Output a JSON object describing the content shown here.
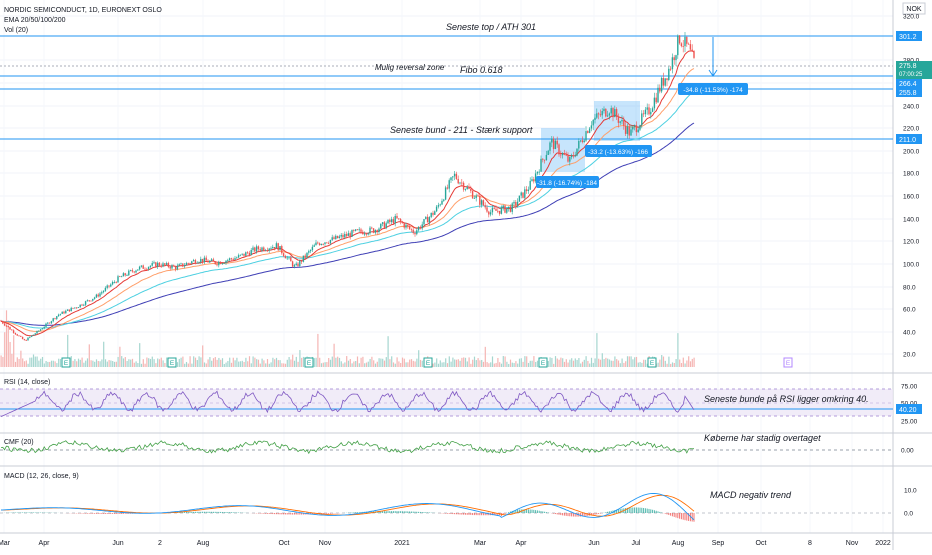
{
  "header": {
    "symbol_line": "NORDIC SEMICONDUCT, 1D, EURONEXT OSLO",
    "ema_line": "EMA 20/50/100/200",
    "vol_line": "Vol (20)",
    "currency": "NOK"
  },
  "colors": {
    "price_up": "#26a69a",
    "price_down": "#ef5350",
    "ema20": "#e53935",
    "ema50": "#ff9f6b",
    "ema100": "#4dd0e1",
    "ema200": "#3f3fb5",
    "hline": "#2196f3",
    "rsi": "#7e57c2",
    "cmf": "#43a047",
    "macd": "#2196f3",
    "signal": "#ff6d00"
  },
  "chart_data": [
    {
      "type": "line",
      "panel": "price",
      "title": "NORDIC SEMICONDUCT, 1D, EURONEXT OSLO",
      "currency": "NOK",
      "ylim": [
        10,
        325
      ],
      "y_ticks": [
        "320.0",
        "280.0",
        "260.0",
        "240.0",
        "220.0",
        "200.0",
        "180.0",
        "160.0",
        "140.0",
        "120.0",
        "100.0",
        "80.0",
        "60.0",
        "40.0",
        "20.0"
      ],
      "x_ticks": [
        "Mar",
        "Apr",
        "Jun",
        "2",
        "Aug",
        "Oct",
        "Nov",
        "2021",
        "Mar",
        "Apr",
        "Jun",
        "Jul",
        "Aug",
        "Sep",
        "Oct",
        "8",
        "Nov",
        "2022"
      ],
      "x_range": [
        "2020-03-01",
        "2022-01-20"
      ],
      "series": [
        {
          "name": "Close",
          "x": [
            "2020-03-01",
            "2020-03-20",
            "2020-04-01",
            "2020-04-15",
            "2020-05-01",
            "2020-05-15",
            "2020-06-01",
            "2020-06-15",
            "2020-07-01",
            "2020-07-15",
            "2020-08-01",
            "2020-08-15",
            "2020-09-01",
            "2020-09-15",
            "2020-10-01",
            "2020-10-15",
            "2020-11-01",
            "2020-11-15",
            "2020-12-01",
            "2020-12-15",
            "2021-01-01",
            "2021-01-15",
            "2021-02-01",
            "2021-02-15",
            "2021-03-01",
            "2021-03-15",
            "2021-04-01",
            "2021-04-15",
            "2021-05-01",
            "2021-05-15",
            "2021-06-01",
            "2021-06-15",
            "2021-07-01",
            "2021-07-15",
            "2021-08-01",
            "2021-08-08",
            "2021-08-15",
            "2021-08-20"
          ],
          "values": [
            50,
            32,
            42,
            55,
            63,
            72,
            88,
            96,
            100,
            97,
            104,
            101,
            106,
            113,
            116,
            97,
            118,
            122,
            128,
            130,
            140,
            128,
            148,
            178,
            162,
            146,
            150,
            170,
            208,
            190,
            226,
            238,
            215,
            235,
            275,
            300,
            290,
            275
          ]
        }
      ],
      "emas": [
        "EMA 20",
        "EMA 50",
        "EMA 100",
        "EMA 200"
      ],
      "price_labels": [
        "301.2",
        "275.8",
        "07:00:25",
        "266.4",
        "255.8",
        "211.0"
      ],
      "annotations": [
        "Seneste top / ATH 301",
        "Mulig reversal zone",
        "Fibo 0.618",
        "Seneste bund - 211 - Stærk support"
      ],
      "measurements": [
        "-34.8 (-11.53%) -174",
        "-33.2 (-13.63%) -166",
        "-31.8 (-16.74%) -184"
      ]
    },
    {
      "type": "line",
      "panel": "RSI",
      "title": "RSI (14, close)",
      "y_ticks": [
        "75.00",
        "50.00",
        "25.00"
      ],
      "last_value": "40.20",
      "annotation": "Seneste bunde på RSI ligger omkring 40."
    },
    {
      "type": "line",
      "panel": "CMF",
      "title": "CMF (20)",
      "y_ticks": [
        "0.00"
      ],
      "annotation": "Køberne har stadig overtaget"
    },
    {
      "type": "line",
      "panel": "MACD",
      "title": "MACD (12, 26, close, 9)",
      "y_ticks": [
        "10.0",
        "0.0"
      ],
      "annotation": "MACD negativ trend"
    }
  ],
  "labels": {
    "ann_top": "Seneste top / ATH 301",
    "ann_reversal": "Mulig reversal zone",
    "ann_fibo": "Fibo 0.618",
    "ann_bund": "Seneste bund - 211 - Stærk support",
    "meas1": "-34.8 (-11.53%) -174",
    "meas2": "-33.2 (-13.63%) -166",
    "meas3": "-31.8 (-16.74%) -184",
    "price_301": "301.2",
    "price_275": "275.8",
    "countdown": "07:00:25",
    "price_266": "266.4",
    "price_255": "255.8",
    "price_211": "211.0",
    "rsi_title": "RSI (14, close)",
    "rsi_last": "40.20",
    "rsi_ann": "Seneste bunde på RSI ligger omkring 40.",
    "cmf_title": "CMF (20)",
    "cmf_ann": "Køberne har stadig overtaget",
    "macd_title": "MACD (12, 26, close, 9)",
    "macd_ann": "MACD negativ trend",
    "earnings": "E"
  }
}
